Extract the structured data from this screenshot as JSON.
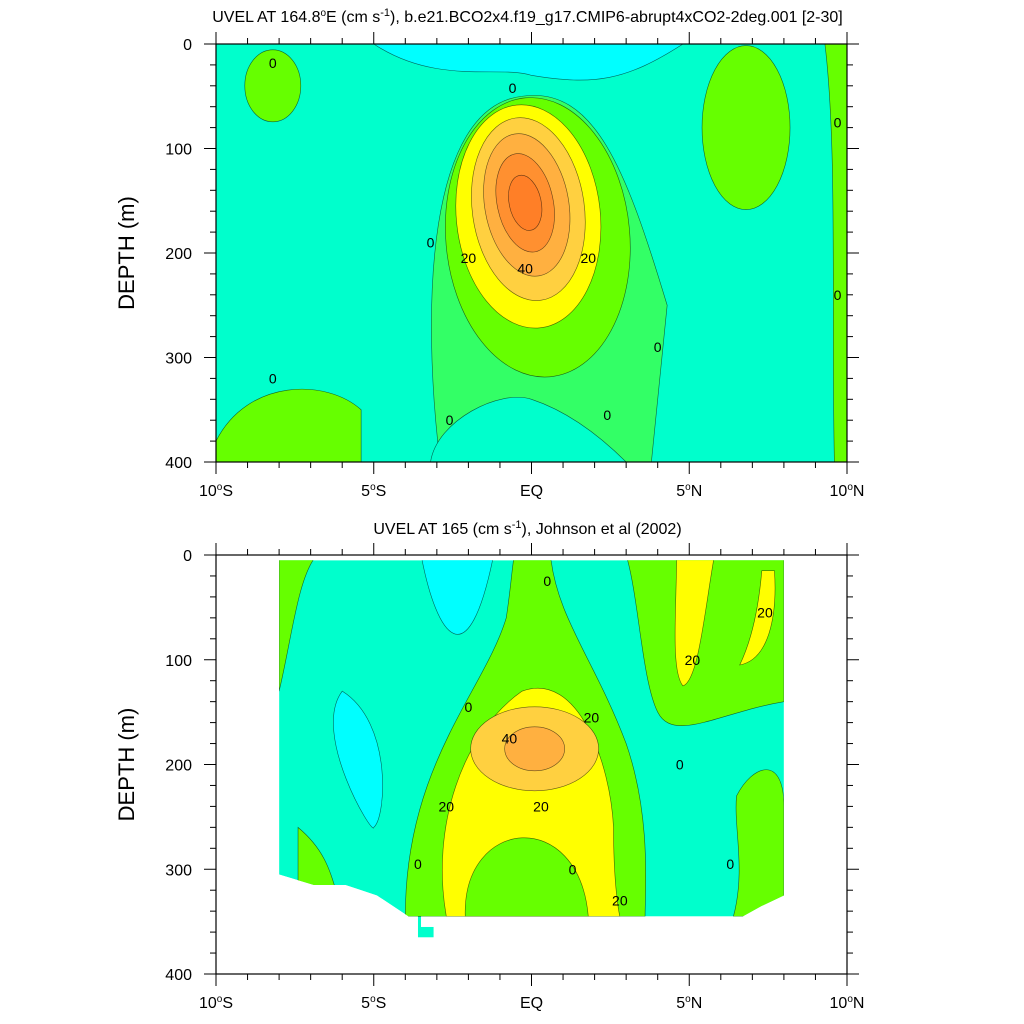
{
  "palette": {
    "neg": "#00ffff",
    "z0": "#00ffcc",
    "z10": "#33ff66",
    "z20": "#66ff00",
    "z30": "#ffff00",
    "z40": "#ffd040",
    "z50": "#ffb040",
    "z60": "#ff9030",
    "z70": "#ff7f27",
    "line": "#000000"
  },
  "chart_data": [
    {
      "type": "heatmap",
      "title": "UVEL AT 164.8°E (cm s⁻¹), b.e21.BCO2x4.f19_g17.CMIP6-abrupt4xCO2-2deg.001 [2-30]",
      "title_parts": {
        "pre": "UVEL AT 164.8",
        "deg": "o",
        "mid": "E (cm s",
        "sup": "-1",
        "post": "), b.e21.BCO2x4.f19_g17.CMIP6-abrupt4xCO2-2deg.001 [2-30]"
      },
      "ylabel": "DEPTH (m)",
      "xlabel": "",
      "xlim": [
        -10,
        10
      ],
      "ylim": [
        400,
        0
      ],
      "data_xlim": [
        -10,
        10
      ],
      "xtick_values": [
        -10,
        -5,
        0,
        5,
        10
      ],
      "xtick_labels": [
        {
          "num": "10",
          "deg": "o",
          "hemi": "S"
        },
        {
          "num": "5",
          "deg": "o",
          "hemi": "S"
        },
        {
          "num": "EQ",
          "deg": "",
          "hemi": ""
        },
        {
          "num": "5",
          "deg": "o",
          "hemi": "N"
        },
        {
          "num": "10",
          "deg": "o",
          "hemi": "N"
        }
      ],
      "ytick_values": [
        0,
        100,
        200,
        300,
        400
      ],
      "ytick_labels": [
        "0",
        "100",
        "200",
        "300",
        "400"
      ],
      "contour_interval": 10,
      "core": {
        "lat": -0.2,
        "depth": 160,
        "max": 62
      },
      "contour_labels": [
        {
          "text": "0",
          "lat": -8.2,
          "depth": 18
        },
        {
          "text": "0",
          "lat": -0.6,
          "depth": 42
        },
        {
          "text": "0",
          "lat": 9.7,
          "depth": 75
        },
        {
          "text": "0",
          "lat": -3.2,
          "depth": 190
        },
        {
          "text": "20",
          "lat": -2.0,
          "depth": 205
        },
        {
          "text": "40",
          "lat": -0.2,
          "depth": 215
        },
        {
          "text": "20",
          "lat": 1.8,
          "depth": 205
        },
        {
          "text": "0",
          "lat": 9.7,
          "depth": 240
        },
        {
          "text": "0",
          "lat": 4.0,
          "depth": 290
        },
        {
          "text": "0",
          "lat": -8.2,
          "depth": 320
        },
        {
          "text": "0",
          "lat": -2.6,
          "depth": 360
        },
        {
          "text": "0",
          "lat": 2.4,
          "depth": 355
        }
      ]
    },
    {
      "type": "heatmap",
      "title": "UVEL AT 165 (cm s⁻¹), Johnson et al (2002)",
      "title_parts": {
        "pre": "UVEL AT 165 (cm s",
        "deg": "",
        "mid": "",
        "sup": "-1",
        "post": "), Johnson et al (2002)"
      },
      "ylabel": "DEPTH (m)",
      "xlabel": "",
      "xlim": [
        -10,
        10
      ],
      "ylim": [
        400,
        0
      ],
      "data_xlim": [
        -8,
        8
      ],
      "xtick_values": [
        -10,
        -5,
        0,
        5,
        10
      ],
      "xtick_labels": [
        {
          "num": "10",
          "deg": "o",
          "hemi": "S"
        },
        {
          "num": "5",
          "deg": "o",
          "hemi": "S"
        },
        {
          "num": "EQ",
          "deg": "",
          "hemi": ""
        },
        {
          "num": "5",
          "deg": "o",
          "hemi": "N"
        },
        {
          "num": "10",
          "deg": "o",
          "hemi": "N"
        }
      ],
      "ytick_values": [
        0,
        100,
        200,
        300,
        400
      ],
      "ytick_labels": [
        "0",
        "100",
        "200",
        "300",
        "400"
      ],
      "contour_interval": 10,
      "core": {
        "lat": 0.0,
        "depth": 185,
        "max": 45
      },
      "contour_labels": [
        {
          "text": "0",
          "lat": 0.5,
          "depth": 25
        },
        {
          "text": "20",
          "lat": 7.4,
          "depth": 55
        },
        {
          "text": "20",
          "lat": 5.1,
          "depth": 100
        },
        {
          "text": "0",
          "lat": -2.0,
          "depth": 145
        },
        {
          "text": "20",
          "lat": 1.9,
          "depth": 155
        },
        {
          "text": "40",
          "lat": -0.7,
          "depth": 175
        },
        {
          "text": "0",
          "lat": 4.7,
          "depth": 200
        },
        {
          "text": "20",
          "lat": -2.7,
          "depth": 240
        },
        {
          "text": "20",
          "lat": 0.3,
          "depth": 240
        },
        {
          "text": "0",
          "lat": -3.6,
          "depth": 295
        },
        {
          "text": "0",
          "lat": 1.3,
          "depth": 300
        },
        {
          "text": "0",
          "lat": 6.3,
          "depth": 295
        },
        {
          "text": "20",
          "lat": 2.8,
          "depth": 330
        }
      ]
    }
  ]
}
